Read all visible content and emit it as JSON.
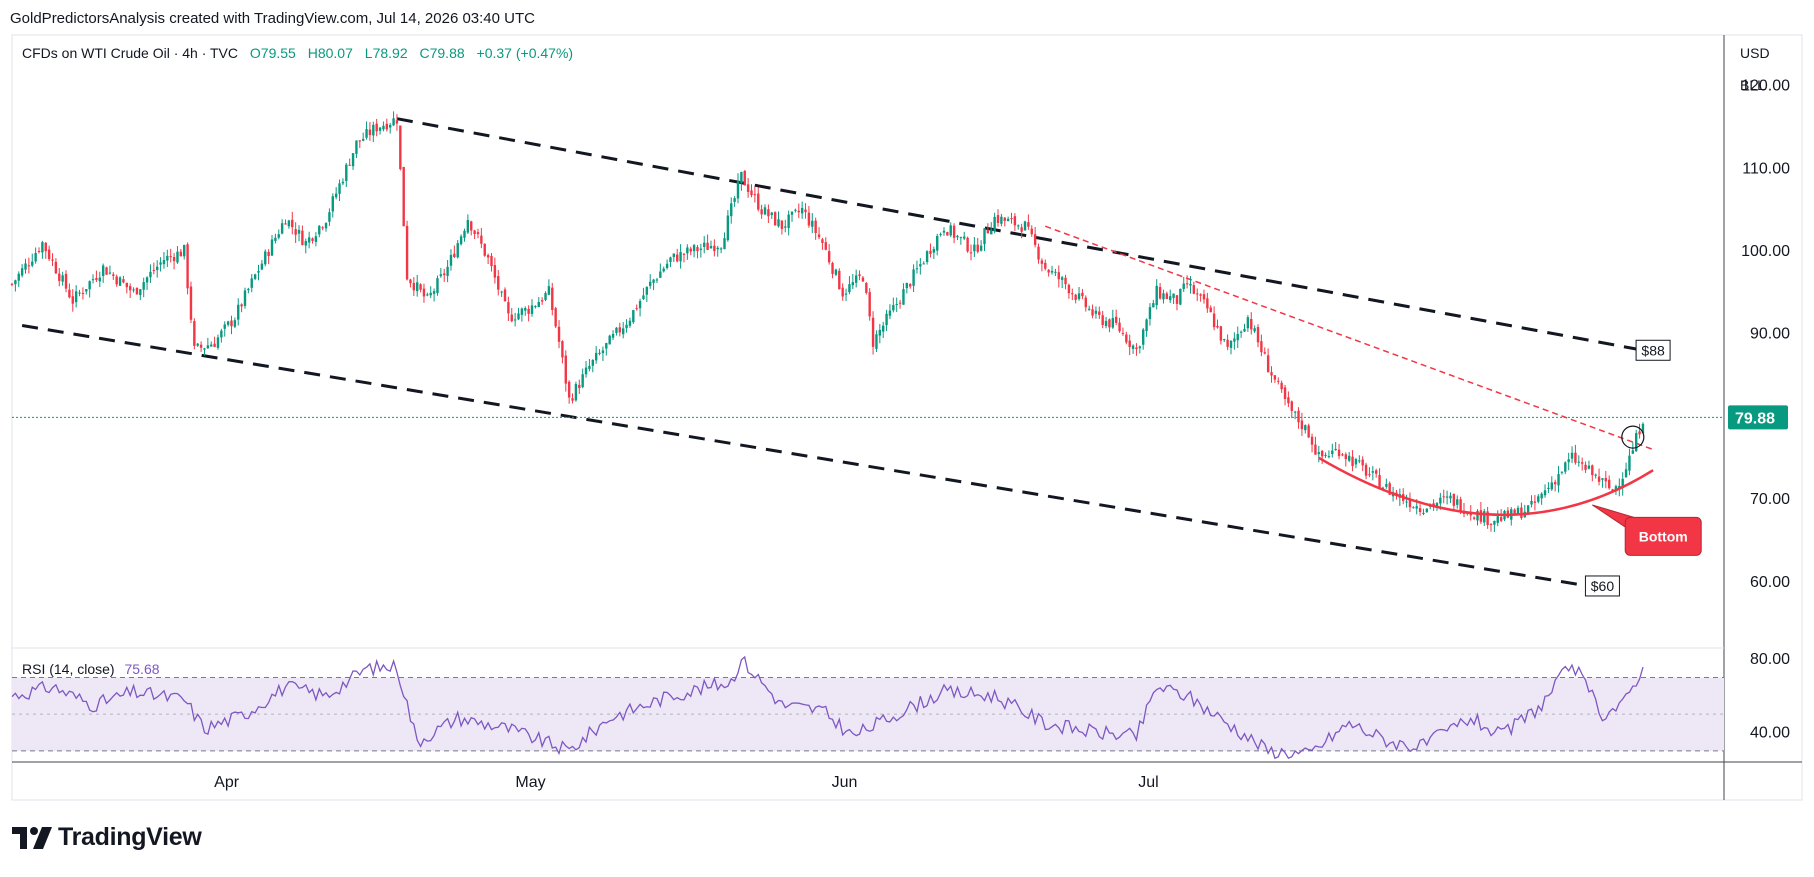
{
  "header": {
    "attribution": "GoldPredictorsAnalysis created with TradingView.com, Jul 14, 2026 03:40 UTC"
  },
  "legend": {
    "symbol": "CFDs on WTI Crude Oil · 4h · TVC",
    "open": "O79.55",
    "high": "H80.07",
    "low": "L78.92",
    "close": "C79.88",
    "change": "+0.37 (+0.47%)"
  },
  "price_axis": {
    "currency": "USD",
    "unit": "BLL",
    "ticks": [
      120,
      110,
      100,
      90,
      70,
      60
    ],
    "last_price_label": "79.88"
  },
  "rsi_panel": {
    "label": "RSI (14, close)",
    "value": "75.68",
    "ticks": [
      80,
      40
    ]
  },
  "annotations": {
    "upper_target": "$88",
    "lower_target": "$60",
    "bottom_callout": "Bottom"
  },
  "branding": {
    "logo_text": "TradingView"
  },
  "colors": {
    "up_candle": "#089981",
    "down_candle": "#f23645",
    "channel": "#131722",
    "resistance": "#f23645",
    "rounding_bottom": "#f23645",
    "last_price": "#089981",
    "rsi_line": "#7e57c2",
    "rsi_band": "#ede7f6"
  },
  "chart_data": {
    "type": "candlestick",
    "symbol": "WTI Crude Oil",
    "interval": "4h",
    "x_labels": [
      "Apr",
      "May",
      "Jun",
      "Jul"
    ],
    "y_range": [
      52,
      126
    ],
    "last_close": 79.88,
    "path_points": [
      [
        "Mar 12",
        96
      ],
      [
        "Mar 15",
        101
      ],
      [
        "Mar 18",
        94
      ],
      [
        "Mar 21",
        98
      ],
      [
        "Mar 24",
        95
      ],
      [
        "Mar 27",
        99
      ],
      [
        "Mar 29",
        100
      ],
      [
        "Mar 30",
        88
      ],
      [
        "Apr 1",
        89
      ],
      [
        "Apr 3",
        92
      ],
      [
        "Apr 5",
        97
      ],
      [
        "Apr 8",
        104
      ],
      [
        "Apr 10",
        101
      ],
      [
        "Apr 12",
        104
      ],
      [
        "Apr 15",
        113
      ],
      [
        "Apr 17",
        115
      ],
      [
        "Apr 19",
        116
      ],
      [
        "Apr 20",
        97
      ],
      [
        "Apr 22",
        94
      ],
      [
        "Apr 24",
        98
      ],
      [
        "Apr 26",
        104
      ],
      [
        "Apr 28",
        99
      ],
      [
        "Apr 30",
        92
      ],
      [
        "May 2",
        93
      ],
      [
        "May 4",
        95
      ],
      [
        "May 5",
        89
      ],
      [
        "May 6",
        82
      ],
      [
        "May 8",
        86
      ],
      [
        "May 10",
        89
      ],
      [
        "May 12",
        92
      ],
      [
        "May 14",
        96
      ],
      [
        "May 16",
        99
      ],
      [
        "May 18",
        100
      ],
      [
        "May 21",
        101
      ],
      [
        "May 23",
        109
      ],
      [
        "May 25",
        105
      ],
      [
        "May 27",
        103
      ],
      [
        "May 29",
        105
      ],
      [
        "May 31",
        101
      ],
      [
        "Jun 2",
        95
      ],
      [
        "Jun 4",
        97
      ],
      [
        "Jun 5",
        89
      ],
      [
        "Jun 7",
        93
      ],
      [
        "Jun 9",
        97
      ],
      [
        "Jun 12",
        103
      ],
      [
        "Jun 15",
        100
      ],
      [
        "Jun 17",
        104
      ],
      [
        "Jun 20",
        103
      ],
      [
        "Jun 22",
        98
      ],
      [
        "Jun 24",
        96
      ],
      [
        "Jun 27",
        92
      ],
      [
        "Jun 29",
        91
      ],
      [
        "Jul 1",
        88
      ],
      [
        "Jul 3",
        95
      ],
      [
        "Jul 5",
        94
      ],
      [
        "Jul 6",
        96
      ],
      [
        "Jul 8",
        93
      ],
      [
        "Jul 10",
        88
      ],
      [
        "Jul 12",
        92
      ],
      [
        "Jul 14",
        86
      ],
      [
        "Jul 16",
        81
      ],
      [
        "Jul 18",
        78
      ],
      [
        "Jul 19",
        75
      ],
      [
        "Jul 21",
        76
      ],
      [
        "Jul 23",
        74
      ],
      [
        "Jul 26",
        71
      ],
      [
        "Jul 29",
        69
      ],
      [
        "Aug 1",
        70
      ],
      [
        "Aug 3",
        68.5
      ],
      [
        "Aug 5",
        67.5
      ],
      [
        "Aug 7",
        68
      ],
      [
        "Aug 9",
        69
      ],
      [
        "Aug 11",
        72
      ],
      [
        "Aug 13",
        75
      ],
      [
        "Aug 15",
        73
      ],
      [
        "Aug 16",
        72
      ],
      [
        "Aug 17",
        71
      ],
      [
        "Aug 18",
        73
      ],
      [
        "Aug 19",
        76
      ],
      [
        "Aug 20",
        79.88
      ]
    ],
    "channel_upper": [
      [
        "Apr 19",
        116
      ],
      [
        "Aug 20",
        88
      ]
    ],
    "channel_lower": [
      [
        "Mar 13",
        91
      ],
      [
        "Aug 17",
        59
      ]
    ],
    "resistance": [
      [
        "Jun 22",
        103
      ],
      [
        "Aug 21",
        76
      ]
    ],
    "rsi_range": [
      25,
      85
    ],
    "rsi_levels": [
      70,
      50,
      30
    ],
    "rsi_points": [
      [
        "Mar 12",
        60
      ],
      [
        "Mar 16",
        65
      ],
      [
        "Mar 20",
        55
      ],
      [
        "Mar 24",
        62
      ],
      [
        "Mar 29",
        58
      ],
      [
        "Mar 31",
        42
      ],
      [
        "Apr 4",
        50
      ],
      [
        "Apr 8",
        65
      ],
      [
        "Apr 12",
        60
      ],
      [
        "Apr 16",
        75
      ],
      [
        "Apr 19",
        76
      ],
      [
        "Apr 21",
        35
      ],
      [
        "Apr 25",
        48
      ],
      [
        "Apr 30",
        42
      ],
      [
        "May 6",
        30
      ],
      [
        "May 10",
        48
      ],
      [
        "May 16",
        60
      ],
      [
        "May 22",
        68
      ],
      [
        "May 23",
        80
      ],
      [
        "May 27",
        55
      ],
      [
        "May 31",
        52
      ],
      [
        "Jun 3",
        38
      ],
      [
        "Jun 8",
        52
      ],
      [
        "Jun 12",
        62
      ],
      [
        "Jun 17",
        60
      ],
      [
        "Jun 22",
        45
      ],
      [
        "Jun 27",
        40
      ],
      [
        "Jul 1",
        38
      ],
      [
        "Jul 3",
        65
      ],
      [
        "Jul 6",
        60
      ],
      [
        "Jul 10",
        45
      ],
      [
        "Jul 14",
        30
      ],
      [
        "Jul 18",
        28
      ],
      [
        "Jul 22",
        45
      ],
      [
        "Jul 26",
        35
      ],
      [
        "Jul 29",
        32
      ],
      [
        "Aug 3",
        48
      ],
      [
        "Aug 6",
        38
      ],
      [
        "Aug 10",
        55
      ],
      [
        "Aug 13",
        78
      ],
      [
        "Aug 16",
        50
      ],
      [
        "Aug 18",
        55
      ],
      [
        "Aug 20",
        75.68
      ]
    ]
  }
}
